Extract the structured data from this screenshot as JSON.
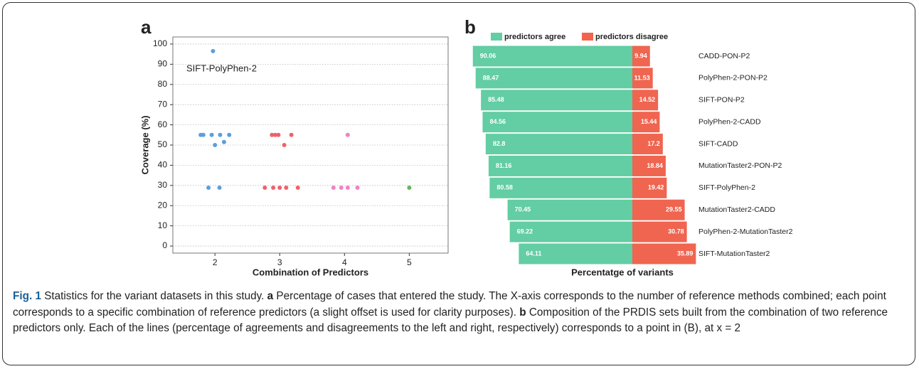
{
  "chart_data": [
    {
      "type": "scatter",
      "panel_label": "a",
      "xlabel": "Combination of Predictors",
      "ylabel": "Coverage (%)",
      "annotation": "SIFT-PolyPhen-2",
      "xlim": [
        1.35,
        5.6
      ],
      "ylim": [
        -3.5,
        103.5
      ],
      "xticks": [
        2,
        3,
        4,
        5
      ],
      "yticks": [
        0,
        10,
        20,
        30,
        40,
        50,
        60,
        70,
        80,
        90,
        100
      ],
      "grid": true,
      "series": [
        {
          "color": "#5b9fdb",
          "x": [
            1.97,
            1.78,
            1.82,
            1.95,
            2.08,
            2.22,
            2.0,
            2.14,
            1.9,
            2.07
          ],
          "values": [
            96.5,
            55,
            55,
            55,
            55,
            55,
            50,
            51.5,
            28.9,
            28.9
          ]
        },
        {
          "color": "#f0616b",
          "x": [
            2.88,
            2.93,
            2.98,
            3.18,
            3.07,
            2.77,
            2.9,
            3.0,
            3.1,
            3.28
          ],
          "values": [
            55,
            55,
            55,
            55,
            50,
            28.9,
            28.9,
            28.9,
            28.9,
            28.9
          ]
        },
        {
          "color": "#ee82c8",
          "x": [
            4.05,
            3.83,
            3.95,
            4.05,
            4.2
          ],
          "values": [
            55,
            28.9,
            28.9,
            28.9,
            28.9
          ]
        },
        {
          "color": "#62b85e",
          "x": [
            5.0
          ],
          "values": [
            28.9
          ]
        }
      ]
    },
    {
      "type": "bar",
      "orientation": "horizontal",
      "layout": "diverging",
      "panel_label": "b",
      "xlabel": "Percentatge of variants",
      "categories": [
        "CADD-PON-P2",
        "PolyPhen-2-PON-P2",
        "SIFT-PON-P2",
        "PolyPhen-2-CADD",
        "SIFT-CADD",
        "MutationTaster2-PON-P2",
        "SIFT-PolyPhen-2",
        "MutationTaster2-CADD",
        "PolyPhen-2-MutationTaster2",
        "SIFT-MutationTaster2"
      ],
      "series": [
        {
          "name": "predictors agree",
          "color": "#63cda4",
          "values": [
            90.06,
            88.47,
            85.48,
            84.56,
            82.8,
            81.16,
            80.58,
            70.45,
            69.22,
            64.11
          ]
        },
        {
          "name": "predictors disagree",
          "color": "#ef6550",
          "values": [
            9.94,
            11.53,
            14.52,
            15.44,
            17.2,
            18.84,
            19.42,
            29.55,
            30.78,
            35.89
          ]
        }
      ]
    }
  ],
  "caption": [
    {
      "text": "Fig. 1",
      "bold": true
    },
    {
      "text": " Statistics for the variant datasets in this study. ",
      "bold": false
    },
    {
      "text": "a",
      "bold": true
    },
    {
      "text": " Percentage of cases that entered the study. The X-axis corresponds to the number of reference methods combined; each point corresponds to a specific combination of reference predictors (a slight offset is used for clarity purposes). ",
      "bold": false
    },
    {
      "text": "b",
      "bold": true
    },
    {
      "text": " Composition of the PRDIS sets built from the combination of two reference predictors only. Each of the lines (percentage of agreements and disagreements to the left and right, respectively) corresponds to a point in (B), at x = 2",
      "bold": false
    }
  ]
}
